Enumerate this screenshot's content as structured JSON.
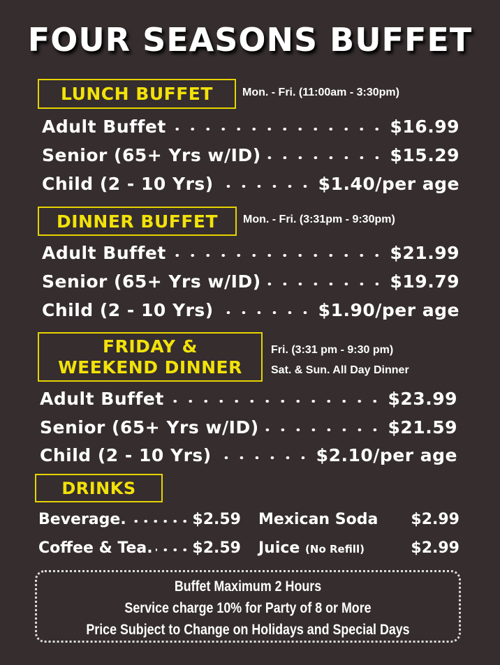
{
  "title": "FOUR SEASONS BUFFET",
  "sections": {
    "lunch": {
      "heading": "LUNCH BUFFET",
      "hours": "Mon. - Fri. (11:00am - 3:30pm)",
      "items": [
        {
          "name": "Adult Buffet",
          "price": "$16.99"
        },
        {
          "name": "Senior (65+ Yrs w/ID)",
          "price": "$15.29"
        },
        {
          "name": "Child (2 - 10 Yrs)",
          "price": "$1.40/per age"
        }
      ]
    },
    "dinner": {
      "heading": "DINNER BUFFET",
      "hours": "Mon. - Fri. (3:31pm - 9:30pm)",
      "items": [
        {
          "name": "Adult Buffet",
          "price": "$21.99"
        },
        {
          "name": "Senior (65+ Yrs w/ID)",
          "price": "$19.79"
        },
        {
          "name": "Child (2 - 10 Yrs)",
          "price": "$1.90/per age"
        }
      ]
    },
    "weekend": {
      "heading_line1": "FRIDAY &",
      "heading_line2": "WEEKEND DINNER",
      "hours_line1": "Fri. (3:31 pm - 9:30 pm)",
      "hours_line2": "Sat. & Sun. All Day Dinner",
      "items": [
        {
          "name": "Adult Buffet",
          "price": "$23.99"
        },
        {
          "name": "Senior (65+ Yrs w/ID)",
          "price": "$21.59"
        },
        {
          "name": "Child (2 - 10 Yrs)",
          "price": "$2.10/per age"
        }
      ]
    },
    "drinks": {
      "heading": "DRINKS",
      "items": [
        {
          "name": "Beverage.",
          "price": "$2.59"
        },
        {
          "name": "Coffee & Tea.",
          "price": "$2.59"
        },
        {
          "name": "Mexican Soda",
          "note": "",
          "price": "$2.99"
        },
        {
          "name": "Juice",
          "note": "(No Refill)",
          "price": "$2.99"
        }
      ]
    }
  },
  "notes": [
    "Buffet Maximum 2 Hours",
    "Service charge 10% for Party of 8 or More",
    "Price Subject to Change on Holidays and Special Days"
  ],
  "colors": {
    "background": "#352d2e",
    "accent": "#f2e20a",
    "text": "#ffffff"
  }
}
